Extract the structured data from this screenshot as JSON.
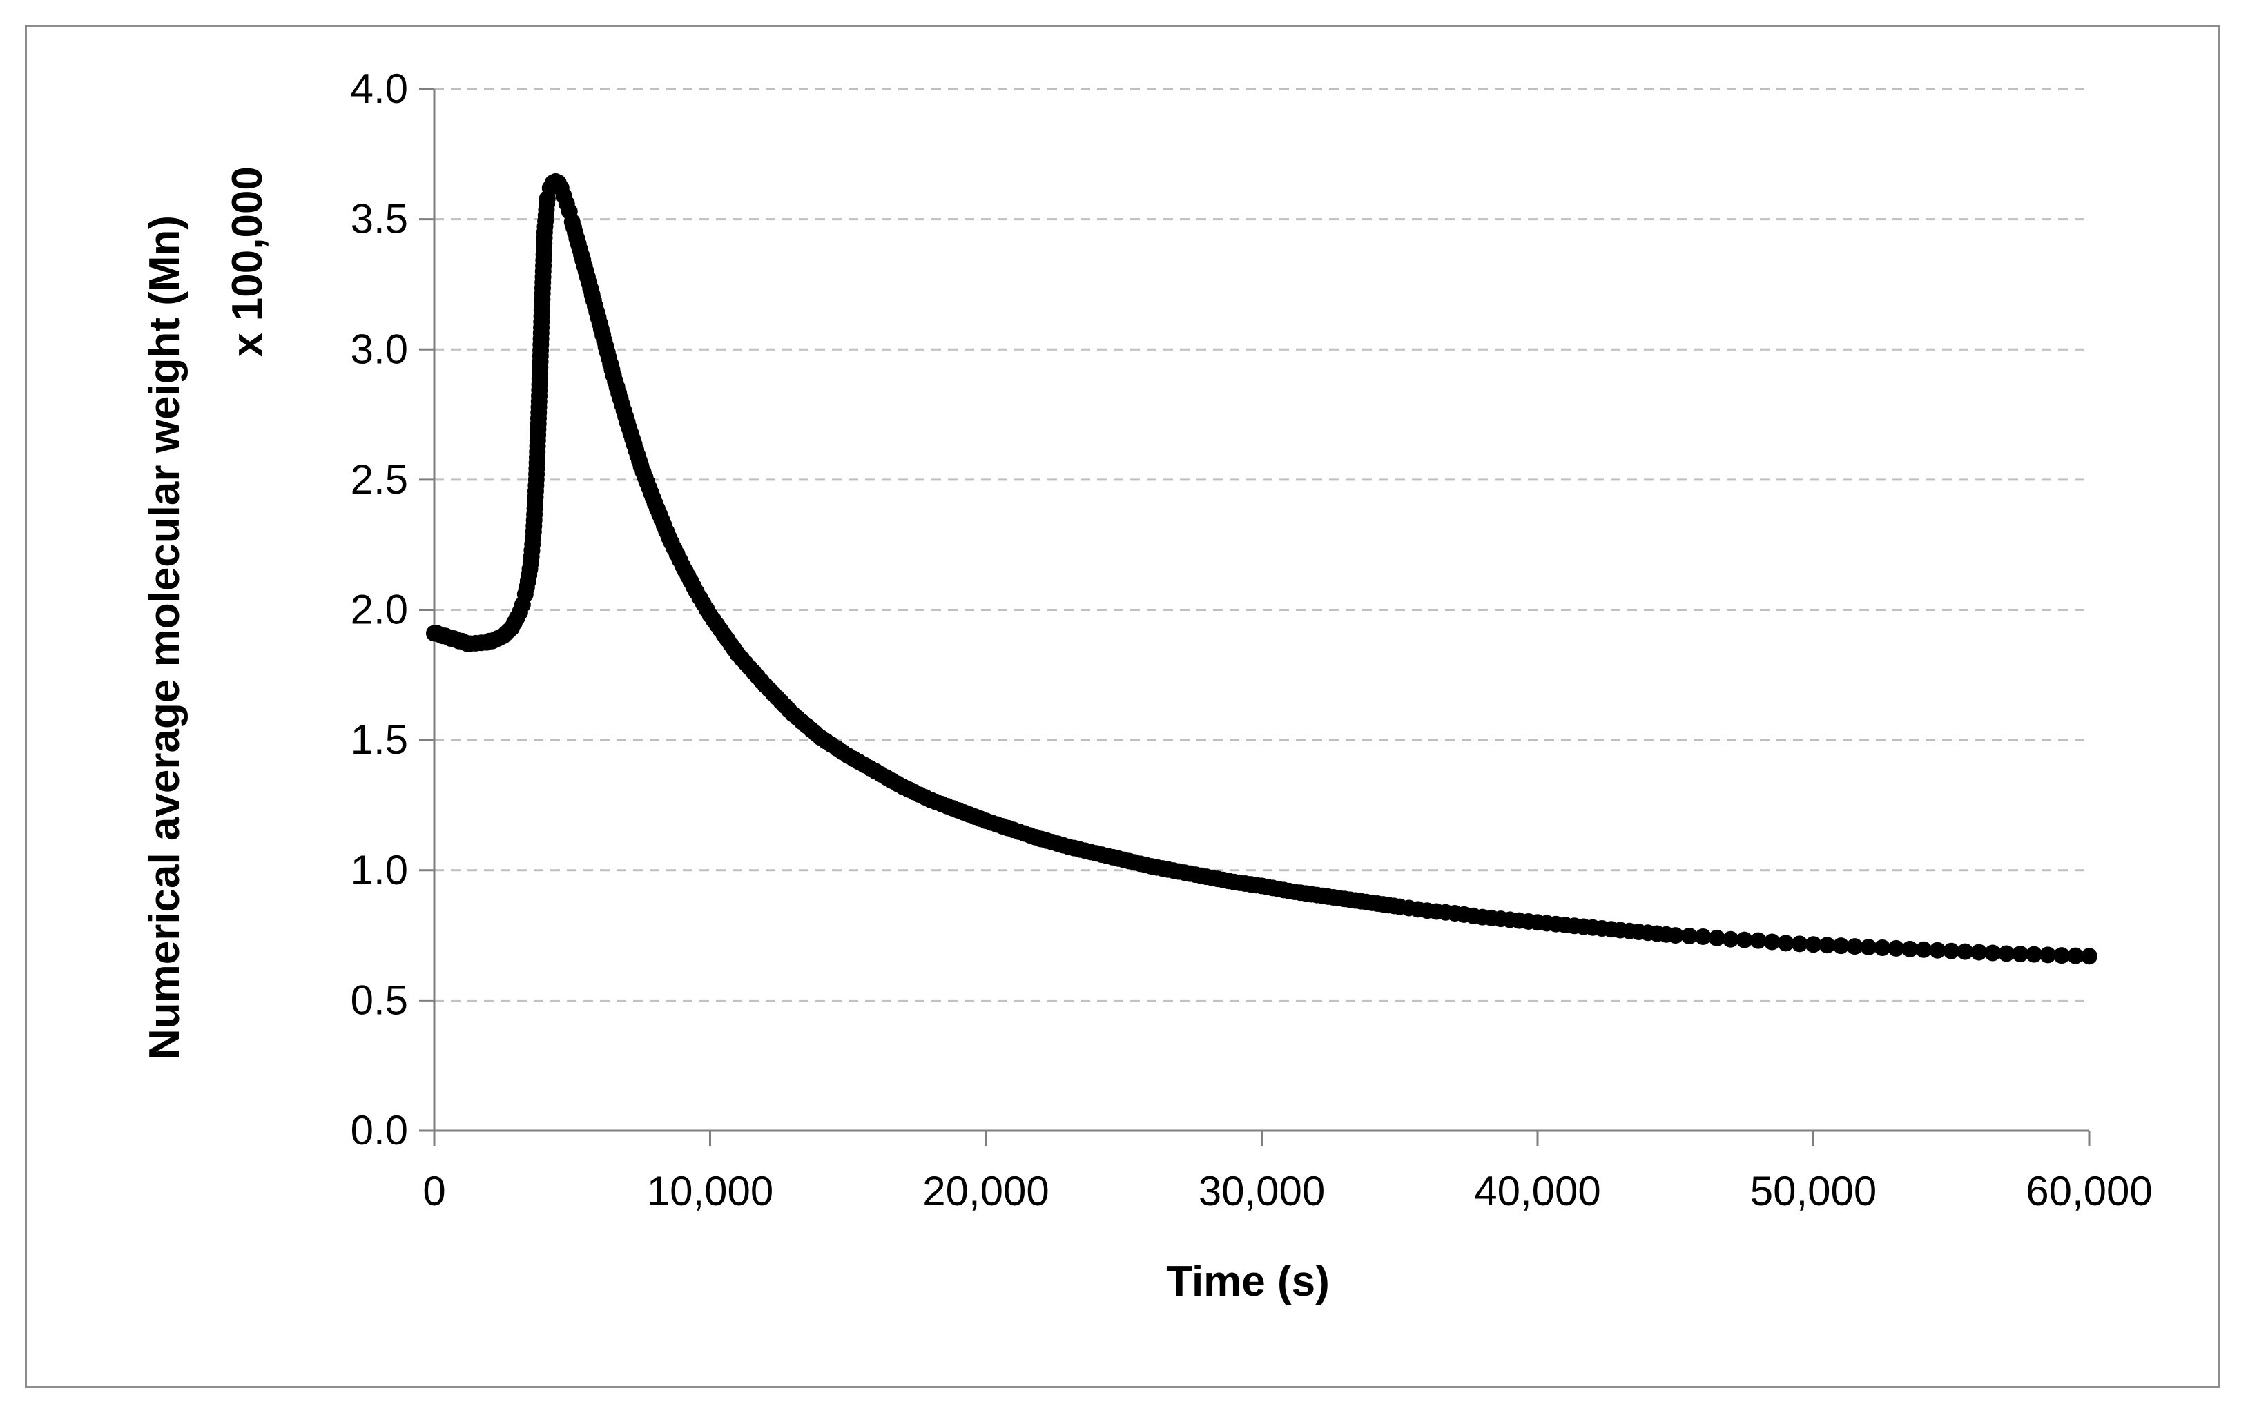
{
  "chart_data": {
    "type": "scatter",
    "xlabel": "Time (s)",
    "ylabel_line1": "Numerical average molecular weight (Mn)",
    "ylabel_line2": "x 100,000",
    "xlim": [
      0,
      60000
    ],
    "ylim": [
      0,
      4.0
    ],
    "xticks": [
      0,
      10000,
      20000,
      30000,
      40000,
      50000,
      60000
    ],
    "xtick_labels": [
      "0",
      "10,000",
      "20,000",
      "30,000",
      "40,000",
      "50,000",
      "60,000"
    ],
    "yticks": [
      0,
      0.5,
      1.0,
      1.5,
      2.0,
      2.5,
      3.0,
      3.5,
      4.0
    ],
    "ytick_labels": [
      "0.0",
      "0.5",
      "1.0",
      "1.5",
      "2.0",
      "2.5",
      "3.0",
      "3.5",
      "4.0"
    ],
    "grid": "horizontal dashed",
    "series": [
      {
        "name": "Mn",
        "marker_color": "#000000",
        "points": [
          [
            0,
            1.91
          ],
          [
            100,
            1.91
          ],
          [
            200,
            1.905
          ],
          [
            300,
            1.9
          ],
          [
            400,
            1.9
          ],
          [
            500,
            1.895
          ],
          [
            600,
            1.89
          ],
          [
            700,
            1.89
          ],
          [
            800,
            1.885
          ],
          [
            900,
            1.88
          ],
          [
            1000,
            1.88
          ],
          [
            1100,
            1.875
          ],
          [
            1200,
            1.87
          ],
          [
            1300,
            1.87
          ],
          [
            1900,
            1.875
          ],
          [
            2000,
            1.88
          ],
          [
            2100,
            1.88
          ],
          [
            2200,
            1.885
          ],
          [
            2300,
            1.89
          ],
          [
            2400,
            1.895
          ],
          [
            2500,
            1.9
          ],
          [
            2600,
            1.91
          ],
          [
            2700,
            1.92
          ],
          [
            2800,
            1.93
          ],
          [
            2900,
            1.95
          ],
          [
            3000,
            1.97
          ],
          [
            3100,
            1.99
          ],
          [
            3200,
            2.02
          ],
          [
            3300,
            2.06
          ],
          [
            3400,
            2.11
          ],
          [
            3500,
            2.18
          ],
          [
            3600,
            2.3
          ],
          [
            3700,
            2.5
          ],
          [
            3800,
            2.8
          ],
          [
            3900,
            3.15
          ],
          [
            4000,
            3.45
          ],
          [
            4100,
            3.58
          ],
          [
            4200,
            3.62
          ],
          [
            4300,
            3.64
          ],
          [
            4400,
            3.645
          ],
          [
            4500,
            3.64
          ],
          [
            4600,
            3.62
          ],
          [
            4700,
            3.59
          ],
          [
            4800,
            3.56
          ],
          [
            4900,
            3.53
          ],
          [
            5000,
            3.49
          ],
          [
            5500,
            3.3
          ],
          [
            6000,
            3.1
          ],
          [
            6500,
            2.9
          ],
          [
            7000,
            2.72
          ],
          [
            7500,
            2.55
          ],
          [
            8000,
            2.41
          ],
          [
            8500,
            2.28
          ],
          [
            9000,
            2.17
          ],
          [
            9500,
            2.07
          ],
          [
            10000,
            1.98
          ],
          [
            11000,
            1.83
          ],
          [
            12000,
            1.71
          ],
          [
            13000,
            1.6
          ],
          [
            14000,
            1.51
          ],
          [
            15000,
            1.44
          ],
          [
            16000,
            1.38
          ],
          [
            17000,
            1.32
          ],
          [
            18000,
            1.27
          ],
          [
            19000,
            1.23
          ],
          [
            20000,
            1.19
          ],
          [
            21000,
            1.155
          ],
          [
            22000,
            1.12
          ],
          [
            23000,
            1.09
          ],
          [
            24000,
            1.065
          ],
          [
            25000,
            1.04
          ],
          [
            26000,
            1.015
          ],
          [
            27000,
            0.995
          ],
          [
            28000,
            0.975
          ],
          [
            29000,
            0.955
          ],
          [
            30000,
            0.94
          ],
          [
            31000,
            0.92
          ],
          [
            32000,
            0.905
          ],
          [
            33000,
            0.89
          ],
          [
            34000,
            0.875
          ],
          [
            35000,
            0.86
          ],
          [
            36000,
            0.845
          ],
          [
            37000,
            0.835
          ],
          [
            38000,
            0.82
          ],
          [
            39000,
            0.81
          ],
          [
            40000,
            0.8
          ],
          [
            41000,
            0.79
          ],
          [
            42000,
            0.78
          ],
          [
            43000,
            0.77
          ],
          [
            44000,
            0.76
          ],
          [
            45000,
            0.75
          ],
          [
            46000,
            0.745
          ],
          [
            47000,
            0.735
          ],
          [
            48000,
            0.73
          ],
          [
            49000,
            0.72
          ],
          [
            50000,
            0.715
          ],
          [
            51000,
            0.71
          ],
          [
            52000,
            0.705
          ],
          [
            53000,
            0.7
          ],
          [
            54000,
            0.695
          ],
          [
            55000,
            0.69
          ],
          [
            56000,
            0.685
          ],
          [
            57000,
            0.68
          ],
          [
            58000,
            0.677
          ],
          [
            59000,
            0.673
          ],
          [
            60000,
            0.67
          ]
        ]
      }
    ]
  }
}
